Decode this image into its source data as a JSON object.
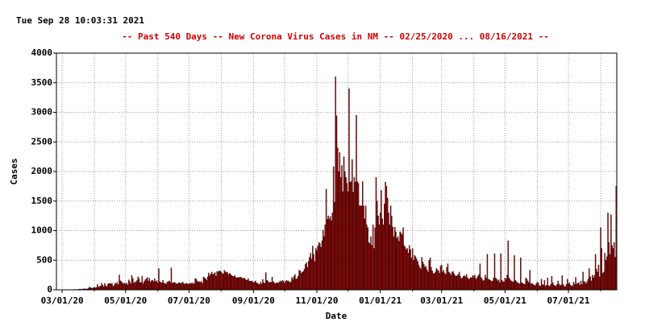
{
  "timestamp": "Tue Sep 28 10:03:31 2021",
  "chart_data": {
    "type": "bar",
    "title": "--  Past 540 Days  --  New Corona Virus Cases in NM  -- 02/25/2020 ... 08/16/2021  --",
    "xlabel": "Date",
    "ylabel": "Cases",
    "color": "#cc0000",
    "edgecolor": "#000000",
    "grid": true,
    "xlim": [
      "2020-02-25",
      "2021-08-16"
    ],
    "xticks": [
      {
        "value": "2020-03-01",
        "label": "03/01/20"
      },
      {
        "value": "2020-05-01",
        "label": "05/01/20"
      },
      {
        "value": "2020-07-01",
        "label": "07/01/20"
      },
      {
        "value": "2020-09-01",
        "label": "09/01/20"
      },
      {
        "value": "2020-11-01",
        "label": "11/01/20"
      },
      {
        "value": "2021-01-01",
        "label": "01/01/21"
      },
      {
        "value": "2021-03-01",
        "label": "03/01/21"
      },
      {
        "value": "2021-05-01",
        "label": "05/01/21"
      },
      {
        "value": "2021-07-01",
        "label": "07/01/21"
      }
    ],
    "x_minor_ticks": [
      "2020-04-01",
      "2020-06-01",
      "2020-08-01",
      "2020-10-01",
      "2020-12-01",
      "2021-02-01",
      "2021-04-01",
      "2021-06-01",
      "2021-08-01"
    ],
    "ylim": [
      0,
      4000
    ],
    "yticks": [
      0,
      500,
      1000,
      1500,
      2000,
      2500,
      3000,
      3500,
      4000
    ],
    "x": [
      "2020-02-25",
      "2020-02-26",
      "2020-02-27",
      "2020-02-28",
      "2020-02-29",
      "2020-03-01",
      "2020-03-02",
      "2020-03-03",
      "2020-03-04",
      "2020-03-05",
      "2020-03-06",
      "2020-03-07",
      "2020-03-08",
      "2020-03-09",
      "2020-03-10",
      "2020-03-11",
      "2020-03-12",
      "2020-03-13",
      "2020-03-14",
      "2020-03-15",
      "2020-03-16",
      "2020-03-17",
      "2020-03-18",
      "2020-03-19",
      "2020-03-20",
      "2020-03-21",
      "2020-03-22",
      "2020-03-23",
      "2020-03-24",
      "2020-03-25",
      "2020-03-26",
      "2020-03-27",
      "2020-03-28",
      "2020-03-29",
      "2020-03-30",
      "2020-03-31",
      "2020-04-01",
      "2020-04-02",
      "2020-04-03",
      "2020-04-04",
      "2020-04-05",
      "2020-04-06",
      "2020-04-07",
      "2020-04-08",
      "2020-04-09",
      "2020-04-10",
      "2020-04-11",
      "2020-04-12",
      "2020-04-13",
      "2020-04-14",
      "2020-04-15",
      "2020-04-16",
      "2020-04-17",
      "2020-04-18",
      "2020-04-19",
      "2020-04-20",
      "2020-04-21",
      "2020-04-22",
      "2020-04-23",
      "2020-04-24",
      "2020-04-25",
      "2020-04-26",
      "2020-04-27",
      "2020-04-28",
      "2020-04-29",
      "2020-04-30",
      "2020-05-01",
      "2020-05-02",
      "2020-05-03",
      "2020-05-04",
      "2020-05-05",
      "2020-05-06",
      "2020-05-07",
      "2020-05-08",
      "2020-05-09",
      "2020-05-10",
      "2020-05-11",
      "2020-05-12",
      "2020-05-13",
      "2020-05-14",
      "2020-05-15",
      "2020-05-16",
      "2020-05-17",
      "2020-05-18",
      "2020-05-19",
      "2020-05-20",
      "2020-05-21",
      "2020-05-22",
      "2020-05-23",
      "2020-05-24",
      "2020-05-25",
      "2020-05-26",
      "2020-05-27",
      "2020-05-28",
      "2020-05-29",
      "2020-05-30",
      "2020-05-31",
      "2020-06-01",
      "2020-06-02",
      "2020-06-03",
      "2020-06-04",
      "2020-06-05",
      "2020-06-06",
      "2020-06-07",
      "2020-06-08",
      "2020-06-09",
      "2020-06-10",
      "2020-06-11",
      "2020-06-12",
      "2020-06-13",
      "2020-06-14",
      "2020-06-15",
      "2020-06-16",
      "2020-06-17",
      "2020-06-18",
      "2020-06-19",
      "2020-06-20",
      "2020-06-21",
      "2020-06-22",
      "2020-06-23",
      "2020-06-24",
      "2020-06-25",
      "2020-06-26",
      "2020-06-27",
      "2020-06-28",
      "2020-06-29",
      "2020-06-30",
      "2020-07-01",
      "2020-07-02",
      "2020-07-03",
      "2020-07-04",
      "2020-07-05",
      "2020-07-06",
      "2020-07-07",
      "2020-07-08",
      "2020-07-09",
      "2020-07-10",
      "2020-07-11",
      "2020-07-12",
      "2020-07-13",
      "2020-07-14",
      "2020-07-15",
      "2020-07-16",
      "2020-07-17",
      "2020-07-18",
      "2020-07-19",
      "2020-07-20",
      "2020-07-21",
      "2020-07-22",
      "2020-07-23",
      "2020-07-24",
      "2020-07-25",
      "2020-07-26",
      "2020-07-27",
      "2020-07-28",
      "2020-07-29",
      "2020-07-30",
      "2020-07-31",
      "2020-08-01",
      "2020-08-02",
      "2020-08-03",
      "2020-08-04",
      "2020-08-05",
      "2020-08-06",
      "2020-08-07",
      "2020-08-08",
      "2020-08-09",
      "2020-08-10",
      "2020-08-11",
      "2020-08-12",
      "2020-08-13",
      "2020-08-14",
      "2020-08-15",
      "2020-08-16",
      "2020-08-17",
      "2020-08-18",
      "2020-08-19",
      "2020-08-20",
      "2020-08-21",
      "2020-08-22",
      "2020-08-23",
      "2020-08-24",
      "2020-08-25",
      "2020-08-26",
      "2020-08-27",
      "2020-08-28",
      "2020-08-29",
      "2020-08-30",
      "2020-08-31",
      "2020-09-01",
      "2020-09-02",
      "2020-09-03",
      "2020-09-04",
      "2020-09-05",
      "2020-09-06",
      "2020-09-07",
      "2020-09-08",
      "2020-09-09",
      "2020-09-10",
      "2020-09-11",
      "2020-09-12",
      "2020-09-13",
      "2020-09-14",
      "2020-09-15",
      "2020-09-16",
      "2020-09-17",
      "2020-09-18",
      "2020-09-19",
      "2020-09-20",
      "2020-09-21",
      "2020-09-22",
      "2020-09-23",
      "2020-09-24",
      "2020-09-25",
      "2020-09-26",
      "2020-09-27",
      "2020-09-28",
      "2020-09-29",
      "2020-09-30",
      "2020-10-01",
      "2020-10-02",
      "2020-10-03",
      "2020-10-04",
      "2020-10-05",
      "2020-10-06",
      "2020-10-07",
      "2020-10-08",
      "2020-10-09",
      "2020-10-10",
      "2020-10-11",
      "2020-10-12",
      "2020-10-13",
      "2020-10-14",
      "2020-10-15",
      "2020-10-16",
      "2020-10-17",
      "2020-10-18",
      "2020-10-19",
      "2020-10-20",
      "2020-10-21",
      "2020-10-22",
      "2020-10-23",
      "2020-10-24",
      "2020-10-25",
      "2020-10-26",
      "2020-10-27",
      "2020-10-28",
      "2020-10-29",
      "2020-10-30",
      "2020-10-31",
      "2020-11-01",
      "2020-11-02",
      "2020-11-03",
      "2020-11-04",
      "2020-11-05",
      "2020-11-06",
      "2020-11-07",
      "2020-11-08",
      "2020-11-09",
      "2020-11-10",
      "2020-11-11",
      "2020-11-12",
      "2020-11-13",
      "2020-11-14",
      "2020-11-15",
      "2020-11-16",
      "2020-11-17",
      "2020-11-18",
      "2020-11-19",
      "2020-11-20",
      "2020-11-21",
      "2020-11-22",
      "2020-11-23",
      "2020-11-24",
      "2020-11-25",
      "2020-11-26",
      "2020-11-27",
      "2020-11-28",
      "2020-11-29",
      "2020-11-30",
      "2020-12-01",
      "2020-12-02",
      "2020-12-03",
      "2020-12-04",
      "2020-12-05",
      "2020-12-06",
      "2020-12-07",
      "2020-12-08",
      "2020-12-09",
      "2020-12-10",
      "2020-12-11",
      "2020-12-12",
      "2020-12-13",
      "2020-12-14",
      "2020-12-15",
      "2020-12-16",
      "2020-12-17",
      "2020-12-18",
      "2020-12-19",
      "2020-12-20",
      "2020-12-21",
      "2020-12-22",
      "2020-12-23",
      "2020-12-24",
      "2020-12-25",
      "2020-12-26",
      "2020-12-27",
      "2020-12-28",
      "2020-12-29",
      "2020-12-30",
      "2020-12-31",
      "2021-01-01",
      "2021-01-02",
      "2021-01-03",
      "2021-01-04",
      "2021-01-05",
      "2021-01-06",
      "2021-01-07",
      "2021-01-08",
      "2021-01-09",
      "2021-01-10",
      "2021-01-11",
      "2021-01-12",
      "2021-01-13",
      "2021-01-14",
      "2021-01-15",
      "2021-01-16",
      "2021-01-17",
      "2021-01-18",
      "2021-01-19",
      "2021-01-20",
      "2021-01-21",
      "2021-01-22",
      "2021-01-23",
      "2021-01-24",
      "2021-01-25",
      "2021-01-26",
      "2021-01-27",
      "2021-01-28",
      "2021-01-29",
      "2021-01-30",
      "2021-01-31",
      "2021-02-01",
      "2021-02-02",
      "2021-02-03",
      "2021-02-04",
      "2021-02-05",
      "2021-02-06",
      "2021-02-07",
      "2021-02-08",
      "2021-02-09",
      "2021-02-10",
      "2021-02-11",
      "2021-02-12",
      "2021-02-13",
      "2021-02-14",
      "2021-02-15",
      "2021-02-16",
      "2021-02-17",
      "2021-02-18",
      "2021-02-19",
      "2021-02-20",
      "2021-02-21",
      "2021-02-22",
      "2021-02-23",
      "2021-02-24",
      "2021-02-25",
      "2021-02-26",
      "2021-02-27",
      "2021-02-28",
      "2021-03-01",
      "2021-03-02",
      "2021-03-03",
      "2021-03-04",
      "2021-03-05",
      "2021-03-06",
      "2021-03-07",
      "2021-03-08",
      "2021-03-09",
      "2021-03-10",
      "2021-03-11",
      "2021-03-12",
      "2021-03-13",
      "2021-03-14",
      "2021-03-15",
      "2021-03-16",
      "2021-03-17",
      "2021-03-18",
      "2021-03-19",
      "2021-03-20",
      "2021-03-21",
      "2021-03-22",
      "2021-03-23",
      "2021-03-24",
      "2021-03-25",
      "2021-03-26",
      "2021-03-27",
      "2021-03-28",
      "2021-03-29",
      "2021-03-30",
      "2021-03-31",
      "2021-04-01",
      "2021-04-02",
      "2021-04-03",
      "2021-04-04",
      "2021-04-05",
      "2021-04-06",
      "2021-04-07",
      "2021-04-08",
      "2021-04-09",
      "2021-04-10",
      "2021-04-11",
      "2021-04-12",
      "2021-04-13",
      "2021-04-14",
      "2021-04-15",
      "2021-04-16",
      "2021-04-17",
      "2021-04-18",
      "2021-04-19",
      "2021-04-20",
      "2021-04-21",
      "2021-04-22",
      "2021-04-23",
      "2021-04-24",
      "2021-04-25",
      "2021-04-26",
      "2021-04-27",
      "2021-04-28",
      "2021-04-29",
      "2021-04-30",
      "2021-05-01",
      "2021-05-02",
      "2021-05-03",
      "2021-05-04",
      "2021-05-05",
      "2021-05-06",
      "2021-05-07",
      "2021-05-08",
      "2021-05-09",
      "2021-05-10",
      "2021-05-11",
      "2021-05-12",
      "2021-05-13",
      "2021-05-14",
      "2021-05-15",
      "2021-05-16",
      "2021-05-17",
      "2021-05-18",
      "2021-05-19",
      "2021-05-20",
      "2021-05-21",
      "2021-05-22",
      "2021-05-23",
      "2021-05-24",
      "2021-05-25",
      "2021-05-26",
      "2021-05-27",
      "2021-05-28",
      "2021-05-29",
      "2021-05-30",
      "2021-05-31",
      "2021-06-01",
      "2021-06-02",
      "2021-06-03",
      "2021-06-04",
      "2021-06-05",
      "2021-06-06",
      "2021-06-07",
      "2021-06-08",
      "2021-06-09",
      "2021-06-10",
      "2021-06-11",
      "2021-06-12",
      "2021-06-13",
      "2021-06-14",
      "2021-06-15",
      "2021-06-16",
      "2021-06-17",
      "2021-06-18",
      "2021-06-19",
      "2021-06-20",
      "2021-06-21",
      "2021-06-22",
      "2021-06-23",
      "2021-06-24",
      "2021-06-25",
      "2021-06-26",
      "2021-06-27",
      "2021-06-28",
      "2021-06-29",
      "2021-06-30",
      "2021-07-01",
      "2021-07-02",
      "2021-07-03",
      "2021-07-04",
      "2021-07-05",
      "2021-07-06",
      "2021-07-07",
      "2021-07-08",
      "2021-07-09",
      "2021-07-10",
      "2021-07-11",
      "2021-07-12",
      "2021-07-13",
      "2021-07-14",
      "2021-07-15",
      "2021-07-16",
      "2021-07-17",
      "2021-07-18",
      "2021-07-19",
      "2021-07-20",
      "2021-07-21",
      "2021-07-22",
      "2021-07-23",
      "2021-07-24",
      "2021-07-25",
      "2021-07-26",
      "2021-07-27",
      "2021-07-28",
      "2021-07-29",
      "2021-07-30",
      "2021-07-31",
      "2021-08-01",
      "2021-08-02",
      "2021-08-03",
      "2021-08-04",
      "2021-08-05",
      "2021-08-06",
      "2021-08-07",
      "2021-08-08",
      "2021-08-09",
      "2021-08-10",
      "2021-08-11",
      "2021-08-12",
      "2021-08-13",
      "2021-08-14",
      "2021-08-15",
      "2021-08-16"
    ],
    "values": [
      0,
      0,
      0,
      0,
      0,
      0,
      0,
      0,
      0,
      0,
      0,
      0,
      0,
      0,
      0,
      3,
      5,
      7,
      6,
      4,
      4,
      10,
      12,
      7,
      14,
      8,
      18,
      18,
      12,
      12,
      24,
      45,
      38,
      29,
      26,
      34,
      45,
      34,
      39,
      91,
      46,
      58,
      62,
      112,
      76,
      53,
      108,
      70,
      52,
      93,
      107,
      109,
      98,
      107,
      58,
      75,
      112,
      97,
      126,
      86,
      250,
      152,
      139,
      116,
      101,
      115,
      95,
      114,
      82,
      168,
      140,
      102,
      245,
      193,
      110,
      135,
      128,
      157,
      220,
      186,
      119,
      126,
      230,
      105,
      142,
      170,
      185,
      208,
      150,
      196,
      130,
      155,
      162,
      138,
      188,
      140,
      152,
      120,
      360,
      140,
      125,
      118,
      160,
      112,
      105,
      95,
      130,
      140,
      150,
      128,
      372,
      110,
      120,
      128,
      115,
      102,
      98,
      118,
      120,
      105,
      116,
      132,
      102,
      96,
      108,
      112,
      92,
      100,
      112,
      98,
      120,
      98,
      110,
      190,
      180,
      150,
      125,
      140,
      128,
      142,
      108,
      218,
      200,
      190,
      162,
      220,
      285,
      240,
      270,
      300,
      258,
      270,
      290,
      230,
      310,
      300,
      320,
      318,
      300,
      280,
      265,
      330,
      305,
      300,
      290,
      258,
      280,
      260,
      240,
      230,
      225,
      240,
      210,
      200,
      210,
      205,
      215,
      215,
      190,
      195,
      200,
      180,
      165,
      160,
      190,
      150,
      145,
      150,
      140,
      120,
      135,
      150,
      115,
      112,
      95,
      90,
      130,
      100,
      175,
      120,
      110,
      290,
      160,
      145,
      120,
      130,
      125,
      215,
      140,
      120,
      100,
      120,
      115,
      115,
      135,
      150,
      130,
      160,
      145,
      105,
      145,
      160,
      140,
      150,
      120,
      135,
      210,
      180,
      230,
      260,
      180,
      190,
      230,
      330,
      320,
      280,
      300,
      310,
      350,
      430,
      460,
      380,
      480,
      550,
      620,
      520,
      740,
      600,
      480,
      700,
      660,
      740,
      800,
      780,
      720,
      830,
      1010,
      900,
      1100,
      1700,
      1190,
      1250,
      1200,
      1240,
      1170,
      1300,
      2080,
      1480,
      3600,
      2940,
      2400,
      2000,
      2320,
      1900,
      2100,
      1660,
      2250,
      2000,
      1900,
      1800,
      1660,
      3400,
      1820,
      1830,
      2200,
      1650,
      1900,
      1820,
      2950,
      1830,
      1800,
      1420,
      1420,
      1420,
      1830,
      1420,
      1200,
      1420,
      1100,
      1050,
      800,
      780,
      900,
      750,
      1100,
      700,
      1050,
      1900,
      1500,
      1250,
      1100,
      1300,
      1680,
      1200,
      1100,
      1450,
      1820,
      1750,
      1550,
      1300,
      1100,
      1420,
      1250,
      1060,
      900,
      1060,
      980,
      870,
      900,
      820,
      980,
      960,
      930,
      1050,
      750,
      720,
      680,
      700,
      620,
      750,
      680,
      540,
      700,
      500,
      580,
      560,
      520,
      480,
      420,
      380,
      350,
      550,
      470,
      430,
      380,
      400,
      340,
      300,
      500,
      540,
      380,
      320,
      280,
      270,
      300,
      360,
      340,
      320,
      280,
      400,
      420,
      300,
      330,
      280,
      260,
      380,
      440,
      300,
      280,
      250,
      300,
      310,
      270,
      240,
      230,
      240,
      260,
      300,
      230,
      190,
      200,
      230,
      240,
      220,
      260,
      200,
      180,
      190,
      210,
      200,
      240,
      220,
      250,
      180,
      200,
      230,
      260,
      440,
      210,
      180,
      150,
      160,
      250,
      200,
      600,
      180,
      170,
      160,
      140,
      150,
      200,
      610,
      200,
      180,
      150,
      170,
      120,
      610,
      160,
      140,
      130,
      200,
      180,
      250,
      830,
      200,
      170,
      150,
      140,
      130,
      580,
      160,
      140,
      120,
      110,
      100,
      540,
      120,
      110,
      100,
      90,
      200,
      180,
      150,
      120,
      330,
      100,
      110,
      90,
      80,
      70,
      100,
      130,
      120,
      70,
      60,
      180,
      90,
      80,
      160,
      60,
      80,
      200,
      70,
      60,
      90,
      230,
      120,
      80,
      70,
      60,
      90,
      150,
      100,
      70,
      80,
      240,
      90,
      60,
      50,
      90,
      180,
      100,
      120,
      80,
      60,
      70,
      130,
      90,
      210,
      100,
      110,
      120,
      80,
      150,
      90,
      300,
      140,
      130,
      100,
      140,
      180,
      360,
      220,
      150,
      250,
      200,
      240,
      600,
      350,
      300,
      420,
      220,
      1050,
      700,
      280,
      300,
      620,
      500,
      560,
      1300,
      800,
      600,
      1270,
      750,
      700,
      800,
      550,
      1750
    ]
  }
}
